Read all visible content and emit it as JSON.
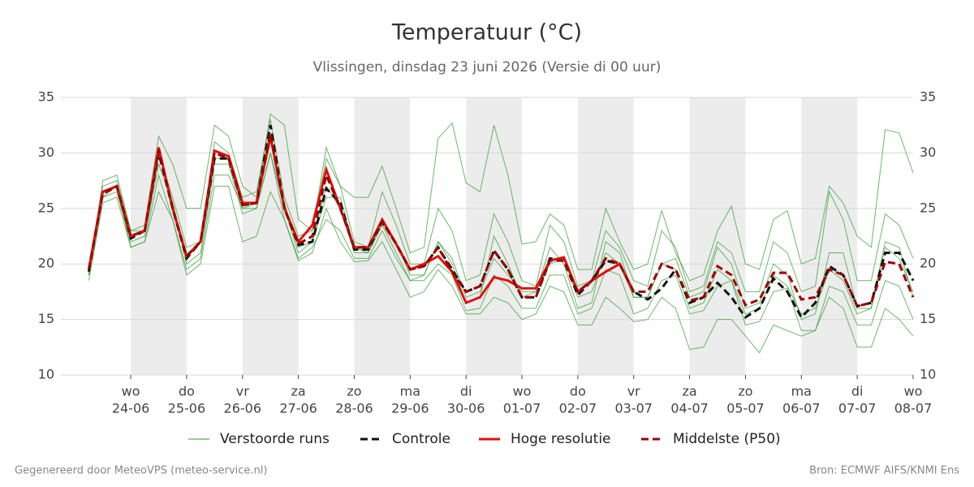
{
  "chart_data": {
    "type": "line",
    "title": "Temperatuur (°C)",
    "subtitle": "Vlissingen, dinsdag 23 juni 2026 (Versie di 00 uur)",
    "footer_left": "Gegenereerd door MeteoVPS (meteo-service.nl)",
    "footer_right": "Bron: ECMWF AIFS/KNMI Ens",
    "x": [
      -0.75,
      -0.5,
      -0.25,
      0,
      0.25,
      0.5,
      0.75,
      1,
      1.25,
      1.5,
      1.75,
      2,
      2.25,
      2.5,
      2.75,
      3,
      3.25,
      3.5,
      3.75,
      4,
      4.25,
      4.5,
      4.75,
      5,
      5.25,
      5.5,
      5.75,
      6,
      6.25,
      6.5,
      6.75,
      7,
      7.25,
      7.5,
      7.75,
      8,
      8.25,
      8.5,
      8.75,
      9,
      9.25,
      9.5,
      9.75,
      10,
      10.25,
      10.5,
      10.75,
      11,
      11.25,
      11.5,
      11.75,
      12,
      12.25,
      12.5,
      12.75,
      13,
      13.25,
      13.5,
      13.75,
      14
    ],
    "xlim": [
      -1.25,
      14
    ],
    "xticks": [
      {
        "value": 0,
        "label": "wo",
        "date": "24-06"
      },
      {
        "value": 1,
        "label": "do",
        "date": "25-06"
      },
      {
        "value": 2,
        "label": "vr",
        "date": "26-06"
      },
      {
        "value": 3,
        "label": "za",
        "date": "27-06"
      },
      {
        "value": 4,
        "label": "zo",
        "date": "28-06"
      },
      {
        "value": 5,
        "label": "ma",
        "date": "29-06"
      },
      {
        "value": 6,
        "label": "di",
        "date": "30-06"
      },
      {
        "value": 7,
        "label": "wo",
        "date": "01-07"
      },
      {
        "value": 8,
        "label": "do",
        "date": "02-07"
      },
      {
        "value": 9,
        "label": "vr",
        "date": "03-07"
      },
      {
        "value": 10,
        "label": "za",
        "date": "04-07"
      },
      {
        "value": 11,
        "label": "zo",
        "date": "05-07"
      },
      {
        "value": 12,
        "label": "ma",
        "date": "06-07"
      },
      {
        "value": 13,
        "label": "di",
        "date": "07-07"
      },
      {
        "value": 14,
        "label": "wo",
        "date": "08-07"
      }
    ],
    "ylim": [
      10,
      35
    ],
    "yticks": [
      10,
      15,
      20,
      25,
      30,
      35
    ],
    "grid": true,
    "series": [
      {
        "name": "Verstoorde runs",
        "color": "#2e9a2e",
        "members": [
          [
            19,
            27.5,
            28,
            23,
            23.5,
            31.5,
            29,
            25,
            25,
            32.5,
            31.5,
            27,
            26,
            33.5,
            32.5,
            24,
            23,
            30.5,
            27,
            26,
            26,
            28.8,
            25,
            21,
            21.5,
            31.3,
            32.7,
            27.3,
            26.5,
            32.5,
            28,
            21.8,
            22,
            24.5,
            23.5,
            19.5,
            19.5,
            25,
            22,
            19.5,
            20,
            24.8,
            21,
            18.5,
            19,
            23,
            25.2,
            20,
            19.5,
            24,
            24.8,
            20,
            20.5,
            27,
            25.5,
            22.5,
            21.5,
            32.1,
            31.8,
            28.2
          ],
          [
            18.5,
            25.5,
            26,
            21.5,
            22,
            26.5,
            24,
            19,
            20,
            27,
            27,
            22,
            22.5,
            26.5,
            24,
            20.3,
            21,
            25,
            22,
            20.2,
            20.3,
            22,
            19.5,
            17,
            17.5,
            19.5,
            18,
            15.5,
            15.5,
            17,
            16.5,
            15,
            15.5,
            18,
            17.5,
            14.5,
            14.5,
            17,
            16,
            14.8,
            15,
            17,
            16,
            12.3,
            12.5,
            15,
            15,
            13.5,
            12,
            14.5,
            14,
            13.5,
            14,
            17,
            16,
            12.5,
            12.5,
            16,
            15,
            13.5
          ],
          [
            19,
            26,
            26.5,
            22,
            22.5,
            29,
            25.5,
            20,
            21,
            29,
            29,
            24.5,
            25,
            30,
            25,
            21,
            22,
            26,
            26,
            21.5,
            21,
            24,
            22,
            19,
            19,
            22,
            20,
            16.5,
            17,
            22.5,
            20,
            17,
            17.5,
            21.5,
            20,
            16,
            16.5,
            22,
            21,
            17,
            17,
            20,
            20.5,
            17,
            17.5,
            21.5,
            20,
            16,
            16.5,
            20,
            19,
            15,
            15.5,
            21,
            21,
            16,
            16,
            22,
            21.5,
            17
          ],
          [
            19.5,
            27,
            27.5,
            23,
            23,
            30,
            26,
            21.5,
            22,
            31,
            30,
            26,
            26.5,
            33,
            26,
            22.5,
            23,
            29.5,
            27,
            22,
            21.5,
            26.5,
            23.5,
            20,
            20,
            25,
            23,
            18.5,
            19,
            24.5,
            22,
            18.5,
            18,
            23.5,
            22,
            18,
            18.5,
            23,
            21.5,
            18.5,
            18,
            23,
            21.5,
            17.5,
            18,
            22,
            21,
            17.5,
            17.5,
            22,
            21,
            17.5,
            18,
            26.5,
            24,
            18.5,
            18.5,
            24.5,
            23.5,
            20.5
          ],
          [
            19,
            26,
            27,
            21.5,
            22,
            28,
            24,
            19.5,
            20.5,
            28,
            28,
            25,
            25,
            30,
            24,
            20.5,
            21.5,
            24,
            23,
            20.5,
            20.5,
            23,
            20.5,
            18.5,
            18.5,
            20,
            19,
            15.8,
            16,
            19,
            18,
            16,
            16,
            19,
            19,
            15.5,
            16,
            19.5,
            19,
            15.5,
            16,
            18.5,
            19,
            15.5,
            15.8,
            18,
            18.5,
            14.5,
            14.8,
            17.5,
            17.8,
            14,
            14,
            18,
            17.5,
            14.5,
            14.5,
            18.5,
            18,
            15
          ],
          [
            19,
            26.5,
            27,
            22.5,
            23,
            30,
            25.5,
            20.5,
            22,
            29.5,
            29.5,
            25,
            25.5,
            31,
            25.5,
            21.5,
            22,
            27,
            25,
            21,
            21,
            23.5,
            21,
            18.5,
            19,
            22,
            20.5,
            17,
            17.5,
            20.5,
            19,
            17.5,
            17.5,
            20,
            20.5,
            17,
            17.5,
            21,
            20,
            17,
            17,
            20,
            19.5,
            16,
            16.5,
            19.5,
            18.5,
            15.5,
            16,
            19,
            18,
            15.5,
            16,
            19.5,
            18.5,
            15.5,
            16,
            21.5,
            20.5,
            17.5
          ]
        ]
      },
      {
        "name": "Controle",
        "color": "#111111",
        "dash": true,
        "values": [
          19.3,
          26.5,
          27,
          22.3,
          23,
          30,
          25,
          20.5,
          22,
          29.5,
          29.5,
          25.3,
          25.5,
          32.5,
          25,
          21.7,
          22,
          26.8,
          25.5,
          21.3,
          21.3,
          23.8,
          21.8,
          19.5,
          19.8,
          21.5,
          19.5,
          17.5,
          18,
          21.2,
          19.5,
          17,
          17,
          20.5,
          20.3,
          17.2,
          18.5,
          20.3,
          20,
          17.5,
          16.8,
          17.8,
          19.5,
          16.5,
          17,
          18.3,
          17,
          15.2,
          16,
          18.7,
          17.5,
          15.2,
          16.5,
          19.8,
          19,
          16.2,
          16.5,
          21,
          21,
          18.5
        ]
      },
      {
        "name": "Hoge resolutie",
        "color": "#e01010",
        "dash": false,
        "values": [
          19.5,
          26.5,
          27,
          22.5,
          23,
          30.5,
          25,
          20.7,
          22,
          30.2,
          29.7,
          25.5,
          25.5,
          31.5,
          25,
          22,
          23.5,
          28.5,
          25,
          21.5,
          21.5,
          24,
          21.8,
          19.5,
          20,
          20.7,
          19.3,
          16.5,
          17,
          18.8,
          18.5,
          17.8,
          17.8,
          20.3,
          20.6,
          17.5,
          18.5,
          19.3,
          20,
          17.5,
          null,
          null,
          null,
          null,
          null,
          null,
          null,
          null,
          null,
          null,
          null,
          null,
          null,
          null,
          null,
          null,
          null,
          null,
          null,
          null
        ]
      },
      {
        "name": "Middelste (P50)",
        "color": "#a00000",
        "dash": true,
        "values": [
          19.5,
          26.3,
          27,
          22.5,
          23,
          30.3,
          25,
          20.7,
          22,
          30,
          29.5,
          25.3,
          25.5,
          31.8,
          25,
          21.8,
          22.5,
          28,
          25,
          21.5,
          21.5,
          23.8,
          21.8,
          19.5,
          19.8,
          21.5,
          19.3,
          17.5,
          18,
          21.2,
          19.5,
          17,
          17,
          20.3,
          20.3,
          17.5,
          18.5,
          20.5,
          20,
          17.5,
          17.5,
          20,
          19.5,
          16.7,
          17,
          19.8,
          19,
          16.3,
          16.8,
          19.2,
          19.2,
          16.8,
          17,
          19.5,
          19,
          16.2,
          16.5,
          20.2,
          20,
          17
        ]
      }
    ]
  }
}
